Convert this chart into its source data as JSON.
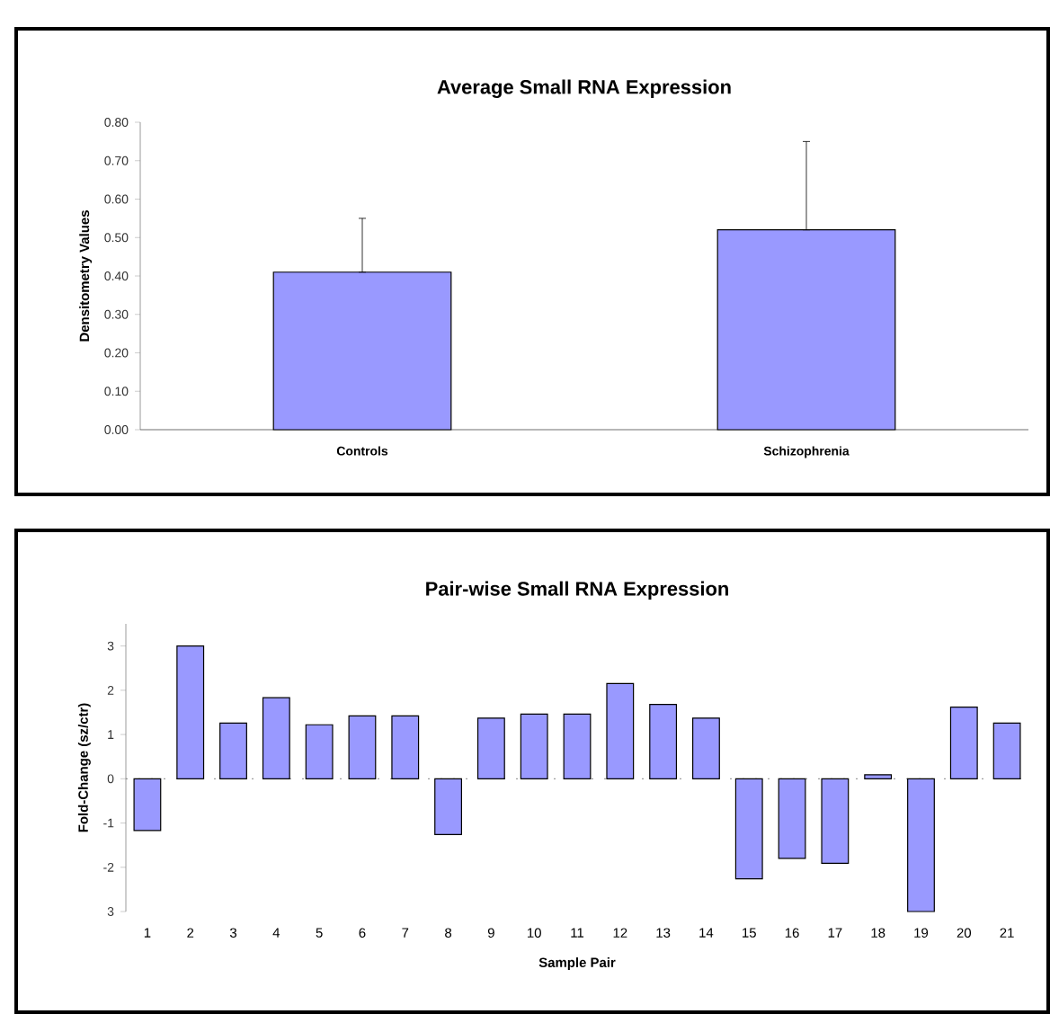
{
  "chart_data": [
    {
      "type": "bar",
      "title": "Average Small RNA Expression",
      "ylabel": "Densitometry Values",
      "categories": [
        "Controls",
        "Schizophrenia"
      ],
      "values": [
        0.41,
        0.52
      ],
      "errors": [
        [
          0.41,
          0.55
        ],
        [
          0.52,
          0.75
        ]
      ],
      "color": "#9999ff",
      "ylim": [
        0,
        0.8
      ],
      "yticks": [
        {
          "value": 0,
          "label": "0.00"
        },
        {
          "value": 0.1,
          "label": "0.10"
        },
        {
          "value": 0.2,
          "label": "0.20"
        },
        {
          "value": 0.3,
          "label": "0.30"
        },
        {
          "value": 0.4,
          "label": "0.40"
        },
        {
          "value": 0.5,
          "label": "0.50"
        },
        {
          "value": 0.6,
          "label": "0.60"
        },
        {
          "value": 0.7,
          "label": "0.70"
        },
        {
          "value": 0.8,
          "label": "0.80"
        }
      ]
    },
    {
      "type": "bar",
      "title": "Pair-wise Small RNA Expression",
      "xlabel": "Sample Pair",
      "ylabel": "Fold-Change (sz/ctr)",
      "categories": [
        "1",
        "2",
        "3",
        "4",
        "5",
        "6",
        "7",
        "8",
        "9",
        "10",
        "11",
        "12",
        "13",
        "14",
        "15",
        "16",
        "17",
        "18",
        "19",
        "20",
        "21"
      ],
      "values": [
        -1.17,
        3.0,
        1.26,
        1.83,
        1.22,
        1.42,
        1.42,
        -1.26,
        1.37,
        1.46,
        1.46,
        2.15,
        1.68,
        1.37,
        -2.26,
        -1.8,
        -1.91,
        0.09,
        -3.0,
        1.62,
        1.26
      ],
      "color": "#9999ff",
      "ylim": [
        -3,
        3.5
      ],
      "yticks": [
        {
          "value": -3,
          "label": "3"
        },
        -2,
        -1,
        0,
        1,
        2,
        3
      ]
    }
  ]
}
